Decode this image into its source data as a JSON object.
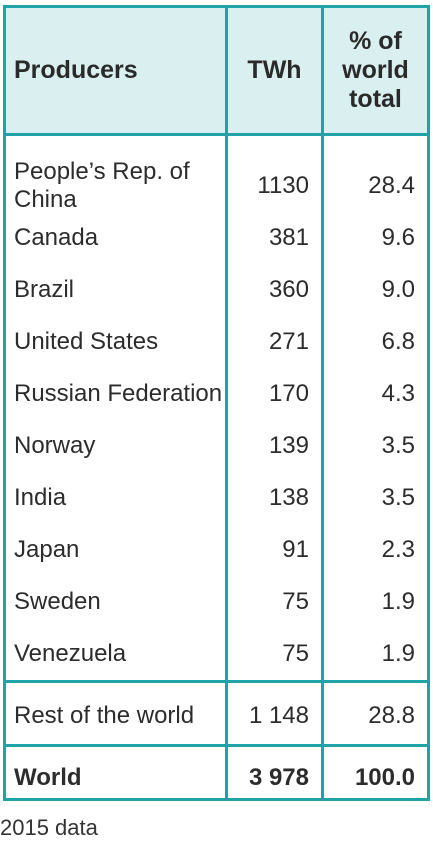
{
  "table": {
    "headers": {
      "producers": "Producers",
      "twh": "TWh",
      "pct_line1": "% of",
      "pct_line2": "world",
      "pct_line3": "total"
    },
    "rows": [
      {
        "name": "People’s Rep. of China",
        "twh": "1130",
        "pct": "28.4"
      },
      {
        "name": "Canada",
        "twh": "381",
        "pct": "9.6"
      },
      {
        "name": "Brazil",
        "twh": "360",
        "pct": "9.0"
      },
      {
        "name": "United States",
        "twh": "271",
        "pct": "6.8"
      },
      {
        "name": "Russian Federation",
        "twh": "170",
        "pct": "4.3"
      },
      {
        "name": "Norway",
        "twh": "139",
        "pct": "3.5"
      },
      {
        "name": "India",
        "twh": "138",
        "pct": "3.5"
      },
      {
        "name": "Japan",
        "twh": "91",
        "pct": "2.3"
      },
      {
        "name": "Sweden",
        "twh": "75",
        "pct": "1.9"
      },
      {
        "name": "Venezuela",
        "twh": "75",
        "pct": "1.9"
      }
    ],
    "rest": {
      "name": "Rest of the world",
      "twh": "1 148",
      "pct": "28.8"
    },
    "world": {
      "name": "World",
      "twh": "3 978",
      "pct": "100.0"
    }
  },
  "footnote": "2015 data",
  "colors": {
    "border": "#1fa3a6",
    "header_bg": "#d9eff0"
  }
}
